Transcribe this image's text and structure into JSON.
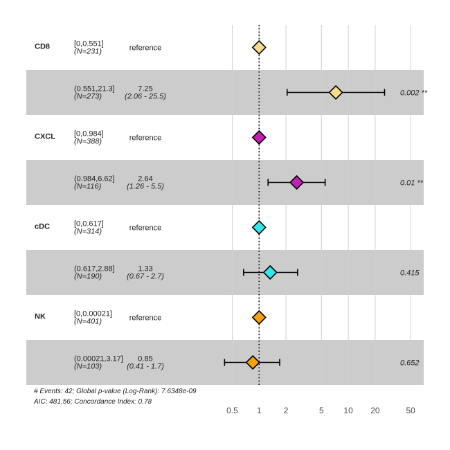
{
  "chart_data": {
    "type": "forest",
    "x_scale": "log",
    "x_ticks": [
      0.5,
      1,
      2,
      5,
      10,
      20,
      50
    ],
    "x_tick_labels": [
      "0.5",
      "1",
      "2",
      "5",
      "10",
      "20",
      "50"
    ],
    "reference_line": 1,
    "xlim": [
      0.29,
      70
    ],
    "grid": true,
    "rows": [
      {
        "variable": "CD8",
        "level": "[0,0.551]",
        "n": "(N=231)",
        "estimate_text": "reference",
        "ci_text": "",
        "p_text": "",
        "hr": 1,
        "lower": null,
        "upper": null,
        "color": "#f8dc8a",
        "shaded": false
      },
      {
        "variable": "",
        "level": "(0.551,21.3]",
        "n": "(N=273)",
        "estimate_text": "7.25",
        "ci_text": "(2.06 - 25.5)",
        "p_text": "0.002 **",
        "hr": 7.25,
        "lower": 2.06,
        "upper": 25.5,
        "color": "#f8dc8a",
        "shaded": true
      },
      {
        "variable": "CXCL",
        "level": "[0,0.984]",
        "n": "(N=388)",
        "estimate_text": "reference",
        "ci_text": "",
        "p_text": "",
        "hr": 1,
        "lower": null,
        "upper": null,
        "color": "#c21fb4",
        "shaded": false
      },
      {
        "variable": "",
        "level": "(0.984,6.62]",
        "n": "(N=116)",
        "estimate_text": "2.64",
        "ci_text": "(1.26 -  5.5)",
        "p_text": "0.01 **",
        "hr": 2.64,
        "lower": 1.26,
        "upper": 5.5,
        "color": "#c21fb4",
        "shaded": true
      },
      {
        "variable": "cDC",
        "level": "[0,0.617]",
        "n": "(N=314)",
        "estimate_text": "reference",
        "ci_text": "",
        "p_text": "",
        "hr": 1,
        "lower": null,
        "upper": null,
        "color": "#2ee8ee",
        "shaded": false
      },
      {
        "variable": "",
        "level": "(0.617,2.88]",
        "n": "(N=190)",
        "estimate_text": "1.33",
        "ci_text": "(0.67 -  2.7)",
        "p_text": "0.415",
        "hr": 1.33,
        "lower": 0.67,
        "upper": 2.7,
        "color": "#2ee8ee",
        "shaded": true
      },
      {
        "variable": "NK",
        "level": "[0,0.00021]",
        "n": "(N=401)",
        "estimate_text": "reference",
        "ci_text": "",
        "p_text": "",
        "hr": 1,
        "lower": null,
        "upper": null,
        "color": "#f5a20f",
        "shaded": false
      },
      {
        "variable": "",
        "level": "(0.00021,3.17]",
        "n": "(N=103)",
        "estimate_text": "0.85",
        "ci_text": "(0.41 -  1.7)",
        "p_text": "0.652",
        "hr": 0.85,
        "lower": 0.41,
        "upper": 1.7,
        "color": "#f5a20f",
        "shaded": true
      }
    ],
    "footnotes": [
      "# Events: 42; Global p-value (Log-Rank): 7.6348e-09",
      "AIC: 481.56; Concordance Index: 0.78"
    ],
    "colors": {
      "shade": "#cccccc",
      "grid": "#d0d0d0",
      "text": "#222222",
      "tick_text": "#4d4d4d"
    }
  }
}
